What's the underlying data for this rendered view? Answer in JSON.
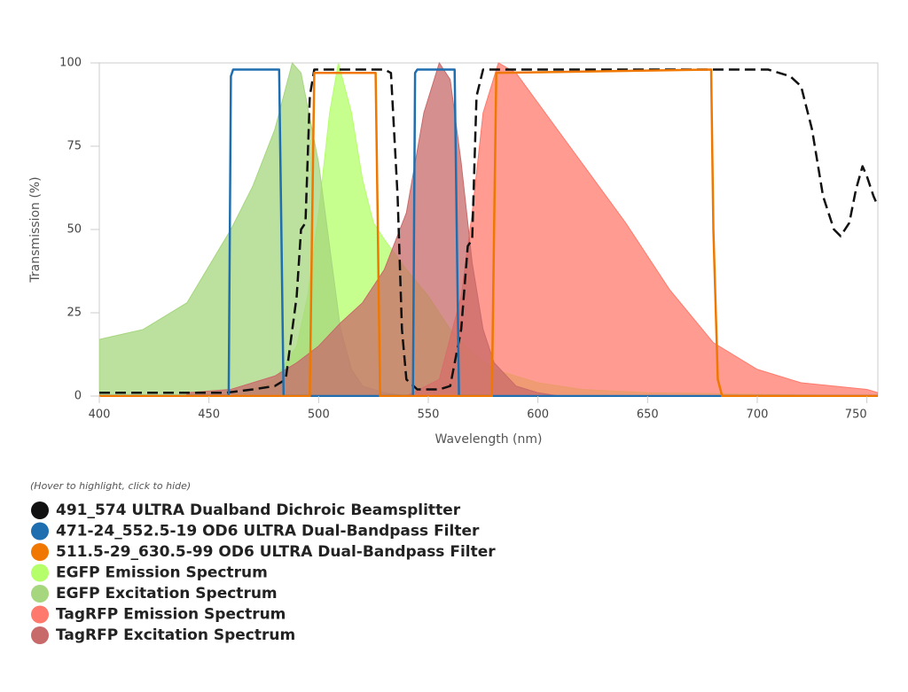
{
  "chart_data": {
    "type": "line",
    "x_label": "Wavelength (nm)",
    "y_label": "Transmission (%)",
    "legend_hint": "(Hover to highlight, click to hide)",
    "xlim": [
      400,
      755
    ],
    "ylim": [
      0,
      100
    ],
    "xticks": [
      400,
      450,
      500,
      550,
      600,
      650,
      700,
      750
    ],
    "yticks": [
      0,
      25,
      50,
      75,
      100
    ],
    "grid": false,
    "legend": "bottom-left",
    "series": [
      {
        "name": "491_574 ULTRA Dualband Dichroic Beamsplitter",
        "color": "#111111",
        "style": "dashed",
        "fill": false,
        "x": [
          400,
          420,
          440,
          458,
          470,
          480,
          485,
          490,
          492,
          494,
          496,
          498,
          500,
          515,
          530,
          533,
          536,
          538,
          540,
          545,
          555,
          560,
          565,
          568,
          570,
          572,
          575,
          600,
          650,
          700,
          705,
          715,
          720,
          725,
          730,
          735,
          738,
          742,
          745,
          748,
          750,
          753,
          755
        ],
        "values": [
          1,
          1,
          1,
          1,
          2,
          3,
          5,
          30,
          50,
          52,
          90,
          98,
          98,
          98,
          98,
          97,
          60,
          20,
          5,
          2,
          2,
          3,
          20,
          45,
          47,
          90,
          98,
          98,
          98,
          98,
          98,
          96,
          93,
          80,
          60,
          50,
          48,
          52,
          62,
          69,
          66,
          60,
          57
        ]
      },
      {
        "name": "471-24_552.5-19 OD6 ULTRA Dual-Bandpass Filter",
        "color": "#1f6fb0",
        "style": "solid",
        "fill": false,
        "x": [
          400,
          459,
          460,
          461,
          482,
          483,
          484,
          543,
          544,
          545,
          562,
          563,
          564,
          755
        ],
        "values": [
          0,
          0,
          96,
          98,
          98,
          50,
          0,
          0,
          97,
          98,
          98,
          50,
          0,
          0
        ]
      },
      {
        "name": "511.5-29_630.5-99 OD6 ULTRA Dual-Bandpass Filter",
        "color": "#f07800",
        "style": "solid",
        "fill": false,
        "x": [
          400,
          496,
          497,
          498,
          526,
          527,
          528,
          579,
          580,
          581,
          679,
          680,
          682,
          684,
          755
        ],
        "values": [
          0,
          0,
          50,
          97,
          97,
          50,
          0,
          0,
          50,
          97,
          98,
          50,
          5,
          0,
          0
        ]
      },
      {
        "name": "EGFP Emission Spectrum",
        "color": "#b4ff6a",
        "style": "solid",
        "fill": true,
        "x": [
          460,
          470,
          480,
          490,
          495,
          500,
          505,
          509,
          515,
          520,
          525,
          530,
          540,
          550,
          560,
          570,
          580,
          600,
          620,
          650,
          700,
          755
        ],
        "values": [
          0,
          2,
          5,
          15,
          30,
          55,
          85,
          100,
          85,
          65,
          52,
          47,
          38,
          30,
          20,
          13,
          8,
          4,
          2,
          1,
          0.5,
          0
        ]
      },
      {
        "name": "EGFP Excitation Spectrum",
        "color": "#a6d67e",
        "style": "solid",
        "fill": true,
        "x": [
          400,
          420,
          440,
          460,
          470,
          480,
          488,
          492,
          500,
          505,
          510,
          515,
          520,
          530,
          540
        ],
        "values": [
          17,
          20,
          28,
          50,
          63,
          80,
          100,
          97,
          70,
          45,
          20,
          8,
          3,
          1,
          0
        ]
      },
      {
        "name": "TagRFP Emission Spectrum",
        "color": "#ff7a6c",
        "style": "solid",
        "fill": true,
        "x": [
          540,
          555,
          565,
          570,
          575,
          582,
          590,
          600,
          620,
          640,
          660,
          680,
          700,
          720,
          750,
          755
        ],
        "values": [
          0,
          5,
          30,
          55,
          85,
          100,
          97,
          88,
          70,
          52,
          32,
          16,
          8,
          4,
          2,
          1
        ]
      },
      {
        "name": "TagRFP Excitation Spectrum",
        "color": "#c86a6a",
        "style": "solid",
        "fill": true,
        "x": [
          440,
          460,
          480,
          490,
          500,
          510,
          520,
          530,
          540,
          548,
          555,
          560,
          565,
          570,
          575,
          580,
          590,
          600,
          610
        ],
        "values": [
          1,
          2,
          6,
          10,
          15,
          22,
          28,
          38,
          55,
          85,
          100,
          95,
          70,
          40,
          20,
          10,
          3,
          1,
          0
        ]
      }
    ]
  }
}
